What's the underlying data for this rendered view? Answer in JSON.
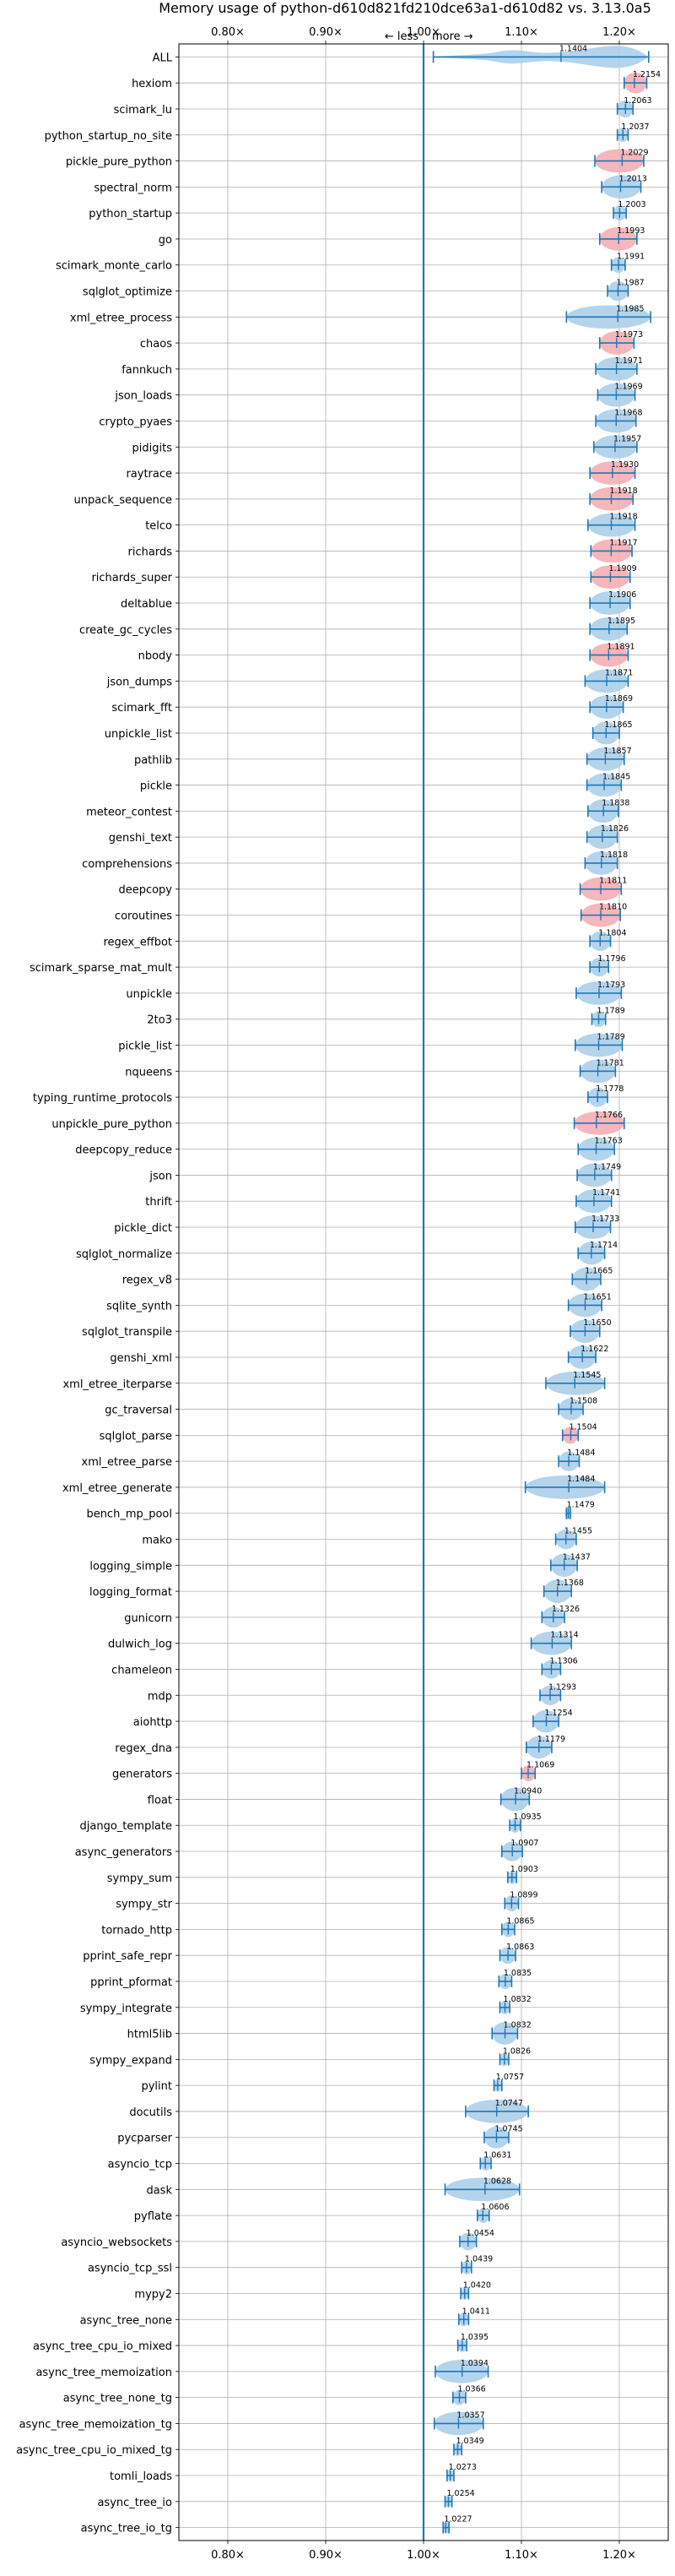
{
  "chart_data": {
    "type": "violin",
    "title": "Memory usage of python-d610d821fd210dce63a1-d610d82 vs. 3.13.0a5",
    "annotation_less": "← less",
    "annotation_more": "more →",
    "xlim": [
      0.75,
      1.25
    ],
    "xticks": [
      0.8,
      0.9,
      1.0,
      1.1,
      1.2
    ],
    "xtick_labels": [
      "0.80×",
      "0.90×",
      "1.00×",
      "1.10×",
      "1.20×"
    ],
    "reference_line": 1.0,
    "grid": true,
    "colors": {
      "violin": "#a7cce9",
      "violin_highlight": "#f3a9b0",
      "whisker": "#1f77b4",
      "reference": "#1f77b4",
      "grid": "#b0b0b0"
    },
    "benchmarks": [
      {
        "name": "ALL",
        "mean": 1.1404,
        "label": "1.1404",
        "lo": 1.01,
        "hi": 1.23,
        "highlight": false
      },
      {
        "name": "hexiom",
        "mean": 1.2154,
        "label": "1.2154",
        "lo": 1.205,
        "hi": 1.228,
        "highlight": true
      },
      {
        "name": "scimark_lu",
        "mean": 1.2063,
        "label": "1.2063",
        "lo": 1.198,
        "hi": 1.214,
        "highlight": false
      },
      {
        "name": "python_startup_no_site",
        "mean": 1.2037,
        "label": "1.2037",
        "lo": 1.198,
        "hi": 1.209,
        "highlight": false
      },
      {
        "name": "pickle_pure_python",
        "mean": 1.2029,
        "label": "1.2029",
        "lo": 1.175,
        "hi": 1.225,
        "highlight": true
      },
      {
        "name": "spectral_norm",
        "mean": 1.2013,
        "label": "1.2013",
        "lo": 1.182,
        "hi": 1.222,
        "highlight": false
      },
      {
        "name": "python_startup",
        "mean": 1.2003,
        "label": "1.2003",
        "lo": 1.194,
        "hi": 1.207,
        "highlight": false
      },
      {
        "name": "go",
        "mean": 1.1993,
        "label": "1.1993",
        "lo": 1.18,
        "hi": 1.218,
        "highlight": true
      },
      {
        "name": "scimark_monte_carlo",
        "mean": 1.1991,
        "label": "1.1991",
        "lo": 1.192,
        "hi": 1.206,
        "highlight": false
      },
      {
        "name": "sqlglot_optimize",
        "mean": 1.1987,
        "label": "1.1987",
        "lo": 1.188,
        "hi": 1.209,
        "highlight": false
      },
      {
        "name": "xml_etree_process",
        "mean": 1.1985,
        "label": "1.1985",
        "lo": 1.146,
        "hi": 1.232,
        "highlight": false
      },
      {
        "name": "chaos",
        "mean": 1.1973,
        "label": "1.1973",
        "lo": 1.18,
        "hi": 1.215,
        "highlight": true
      },
      {
        "name": "fannkuch",
        "mean": 1.1971,
        "label": "1.1971",
        "lo": 1.176,
        "hi": 1.218,
        "highlight": false
      },
      {
        "name": "json_loads",
        "mean": 1.1969,
        "label": "1.1969",
        "lo": 1.178,
        "hi": 1.216,
        "highlight": false
      },
      {
        "name": "crypto_pyaes",
        "mean": 1.1968,
        "label": "1.1968",
        "lo": 1.176,
        "hi": 1.217,
        "highlight": false
      },
      {
        "name": "pidigits",
        "mean": 1.1957,
        "label": "1.1957",
        "lo": 1.174,
        "hi": 1.218,
        "highlight": false
      },
      {
        "name": "raytrace",
        "mean": 1.193,
        "label": "1.1930",
        "lo": 1.17,
        "hi": 1.216,
        "highlight": true
      },
      {
        "name": "unpack_sequence",
        "mean": 1.1918,
        "label": "1.1918",
        "lo": 1.17,
        "hi": 1.214,
        "highlight": true
      },
      {
        "name": "telco",
        "mean": 1.1918,
        "label": "1.1918",
        "lo": 1.168,
        "hi": 1.216,
        "highlight": false
      },
      {
        "name": "richards",
        "mean": 1.1917,
        "label": "1.1917",
        "lo": 1.171,
        "hi": 1.213,
        "highlight": true
      },
      {
        "name": "richards_super",
        "mean": 1.1909,
        "label": "1.1909",
        "lo": 1.171,
        "hi": 1.211,
        "highlight": true
      },
      {
        "name": "deltablue",
        "mean": 1.1906,
        "label": "1.1906",
        "lo": 1.17,
        "hi": 1.211,
        "highlight": false
      },
      {
        "name": "create_gc_cycles",
        "mean": 1.1895,
        "label": "1.1895",
        "lo": 1.17,
        "hi": 1.208,
        "highlight": false
      },
      {
        "name": "nbody",
        "mean": 1.1891,
        "label": "1.1891",
        "lo": 1.17,
        "hi": 1.209,
        "highlight": true
      },
      {
        "name": "json_dumps",
        "mean": 1.1871,
        "label": "1.1871",
        "lo": 1.165,
        "hi": 1.209,
        "highlight": false
      },
      {
        "name": "scimark_fft",
        "mean": 1.1869,
        "label": "1.1869",
        "lo": 1.17,
        "hi": 1.204,
        "highlight": false
      },
      {
        "name": "unpickle_list",
        "mean": 1.1865,
        "label": "1.1865",
        "lo": 1.173,
        "hi": 1.2,
        "highlight": false
      },
      {
        "name": "pathlib",
        "mean": 1.1857,
        "label": "1.1857",
        "lo": 1.167,
        "hi": 1.205,
        "highlight": false
      },
      {
        "name": "pickle",
        "mean": 1.1845,
        "label": "1.1845",
        "lo": 1.167,
        "hi": 1.202,
        "highlight": false
      },
      {
        "name": "meteor_contest",
        "mean": 1.1838,
        "label": "1.1838",
        "lo": 1.168,
        "hi": 1.199,
        "highlight": false
      },
      {
        "name": "genshi_text",
        "mean": 1.1826,
        "label": "1.1826",
        "lo": 1.167,
        "hi": 1.198,
        "highlight": false
      },
      {
        "name": "comprehensions",
        "mean": 1.1818,
        "label": "1.1818",
        "lo": 1.165,
        "hi": 1.198,
        "highlight": false
      },
      {
        "name": "deepcopy",
        "mean": 1.1811,
        "label": "1.1811",
        "lo": 1.16,
        "hi": 1.202,
        "highlight": true
      },
      {
        "name": "coroutines",
        "mean": 1.181,
        "label": "1.1810",
        "lo": 1.161,
        "hi": 1.201,
        "highlight": true
      },
      {
        "name": "regex_effbot",
        "mean": 1.1804,
        "label": "1.1804",
        "lo": 1.17,
        "hi": 1.191,
        "highlight": false
      },
      {
        "name": "scimark_sparse_mat_mult",
        "mean": 1.1796,
        "label": "1.1796",
        "lo": 1.17,
        "hi": 1.189,
        "highlight": false
      },
      {
        "name": "unpickle",
        "mean": 1.1793,
        "label": "1.1793",
        "lo": 1.156,
        "hi": 1.202,
        "highlight": false
      },
      {
        "name": "2to3",
        "mean": 1.1789,
        "label": "1.1789",
        "lo": 1.172,
        "hi": 1.186,
        "highlight": false
      },
      {
        "name": "pickle_list",
        "mean": 1.1789,
        "label": "1.1789",
        "lo": 1.155,
        "hi": 1.203,
        "highlight": false
      },
      {
        "name": "nqueens",
        "mean": 1.1781,
        "label": "1.1781",
        "lo": 1.16,
        "hi": 1.196,
        "highlight": false
      },
      {
        "name": "typing_runtime_protocols",
        "mean": 1.1778,
        "label": "1.1778",
        "lo": 1.168,
        "hi": 1.188,
        "highlight": false
      },
      {
        "name": "unpickle_pure_python",
        "mean": 1.1766,
        "label": "1.1766",
        "lo": 1.154,
        "hi": 1.205,
        "highlight": true
      },
      {
        "name": "deepcopy_reduce",
        "mean": 1.1763,
        "label": "1.1763",
        "lo": 1.158,
        "hi": 1.195,
        "highlight": false
      },
      {
        "name": "json",
        "mean": 1.1749,
        "label": "1.1749",
        "lo": 1.157,
        "hi": 1.192,
        "highlight": false
      },
      {
        "name": "thrift",
        "mean": 1.1741,
        "label": "1.1741",
        "lo": 1.156,
        "hi": 1.192,
        "highlight": false
      },
      {
        "name": "pickle_dict",
        "mean": 1.1733,
        "label": "1.1733",
        "lo": 1.155,
        "hi": 1.191,
        "highlight": false
      },
      {
        "name": "sqlglot_normalize",
        "mean": 1.1714,
        "label": "1.1714",
        "lo": 1.158,
        "hi": 1.185,
        "highlight": false
      },
      {
        "name": "regex_v8",
        "mean": 1.1665,
        "label": "1.1665",
        "lo": 1.152,
        "hi": 1.181,
        "highlight": false
      },
      {
        "name": "sqlite_synth",
        "mean": 1.1651,
        "label": "1.1651",
        "lo": 1.148,
        "hi": 1.182,
        "highlight": false
      },
      {
        "name": "sqlglot_transpile",
        "mean": 1.165,
        "label": "1.1650",
        "lo": 1.15,
        "hi": 1.18,
        "highlight": false
      },
      {
        "name": "genshi_xml",
        "mean": 1.1622,
        "label": "1.1622",
        "lo": 1.148,
        "hi": 1.176,
        "highlight": false
      },
      {
        "name": "xml_etree_iterparse",
        "mean": 1.1545,
        "label": "1.1545",
        "lo": 1.125,
        "hi": 1.185,
        "highlight": false
      },
      {
        "name": "gc_traversal",
        "mean": 1.1508,
        "label": "1.1508",
        "lo": 1.138,
        "hi": 1.163,
        "highlight": false
      },
      {
        "name": "sqlglot_parse",
        "mean": 1.1504,
        "label": "1.1504",
        "lo": 1.142,
        "hi": 1.158,
        "highlight": true
      },
      {
        "name": "xml_etree_parse",
        "mean": 1.1484,
        "label": "1.1484",
        "lo": 1.138,
        "hi": 1.159,
        "highlight": false
      },
      {
        "name": "xml_etree_generate",
        "mean": 1.1484,
        "label": "1.1484",
        "lo": 1.104,
        "hi": 1.185,
        "highlight": false
      },
      {
        "name": "bench_mp_pool",
        "mean": 1.1479,
        "label": "1.1479",
        "lo": 1.146,
        "hi": 1.15,
        "highlight": false
      },
      {
        "name": "mako",
        "mean": 1.1455,
        "label": "1.1455",
        "lo": 1.135,
        "hi": 1.156,
        "highlight": false
      },
      {
        "name": "logging_simple",
        "mean": 1.1437,
        "label": "1.1437",
        "lo": 1.13,
        "hi": 1.157,
        "highlight": false
      },
      {
        "name": "logging_format",
        "mean": 1.1368,
        "label": "1.1368",
        "lo": 1.123,
        "hi": 1.151,
        "highlight": false
      },
      {
        "name": "gunicorn",
        "mean": 1.1326,
        "label": "1.1326",
        "lo": 1.121,
        "hi": 1.144,
        "highlight": false
      },
      {
        "name": "dulwich_log",
        "mean": 1.1314,
        "label": "1.1314",
        "lo": 1.11,
        "hi": 1.151,
        "highlight": false
      },
      {
        "name": "chameleon",
        "mean": 1.1306,
        "label": "1.1306",
        "lo": 1.121,
        "hi": 1.14,
        "highlight": false
      },
      {
        "name": "mdp",
        "mean": 1.1293,
        "label": "1.1293",
        "lo": 1.119,
        "hi": 1.14,
        "highlight": false
      },
      {
        "name": "aiohttp",
        "mean": 1.1254,
        "label": "1.1254",
        "lo": 1.112,
        "hi": 1.138,
        "highlight": false
      },
      {
        "name": "regex_dna",
        "mean": 1.1179,
        "label": "1.1179",
        "lo": 1.105,
        "hi": 1.131,
        "highlight": false
      },
      {
        "name": "generators",
        "mean": 1.1069,
        "label": "1.1069",
        "lo": 1.1,
        "hi": 1.114,
        "highlight": true
      },
      {
        "name": "float",
        "mean": 1.094,
        "label": "1.0940",
        "lo": 1.079,
        "hi": 1.108,
        "highlight": false
      },
      {
        "name": "django_template",
        "mean": 1.0935,
        "label": "1.0935",
        "lo": 1.088,
        "hi": 1.099,
        "highlight": false
      },
      {
        "name": "async_generators",
        "mean": 1.0907,
        "label": "1.0907",
        "lo": 1.08,
        "hi": 1.101,
        "highlight": false
      },
      {
        "name": "sympy_sum",
        "mean": 1.0903,
        "label": "1.0903",
        "lo": 1.086,
        "hi": 1.095,
        "highlight": false
      },
      {
        "name": "sympy_str",
        "mean": 1.0899,
        "label": "1.0899",
        "lo": 1.083,
        "hi": 1.097,
        "highlight": false
      },
      {
        "name": "tornado_http",
        "mean": 1.0865,
        "label": "1.0865",
        "lo": 1.08,
        "hi": 1.093,
        "highlight": false
      },
      {
        "name": "pprint_safe_repr",
        "mean": 1.0863,
        "label": "1.0863",
        "lo": 1.078,
        "hi": 1.094,
        "highlight": false
      },
      {
        "name": "pprint_pformat",
        "mean": 1.0835,
        "label": "1.0835",
        "lo": 1.077,
        "hi": 1.09,
        "highlight": false
      },
      {
        "name": "sympy_integrate",
        "mean": 1.0832,
        "label": "1.0832",
        "lo": 1.078,
        "hi": 1.088,
        "highlight": false
      },
      {
        "name": "html5lib",
        "mean": 1.0832,
        "label": "1.0832",
        "lo": 1.07,
        "hi": 1.096,
        "highlight": false
      },
      {
        "name": "sympy_expand",
        "mean": 1.0826,
        "label": "1.0826",
        "lo": 1.078,
        "hi": 1.087,
        "highlight": false
      },
      {
        "name": "pylint",
        "mean": 1.0757,
        "label": "1.0757",
        "lo": 1.072,
        "hi": 1.08,
        "highlight": false
      },
      {
        "name": "docutils",
        "mean": 1.0747,
        "label": "1.0747",
        "lo": 1.043,
        "hi": 1.107,
        "highlight": false
      },
      {
        "name": "pycparser",
        "mean": 1.0745,
        "label": "1.0745",
        "lo": 1.062,
        "hi": 1.087,
        "highlight": false
      },
      {
        "name": "asyncio_tcp",
        "mean": 1.0631,
        "label": "1.0631",
        "lo": 1.058,
        "hi": 1.069,
        "highlight": false
      },
      {
        "name": "dask",
        "mean": 1.0628,
        "label": "1.0628",
        "lo": 1.022,
        "hi": 1.098,
        "highlight": false
      },
      {
        "name": "pyflate",
        "mean": 1.0606,
        "label": "1.0606",
        "lo": 1.055,
        "hi": 1.067,
        "highlight": false
      },
      {
        "name": "asyncio_websockets",
        "mean": 1.0454,
        "label": "1.0454",
        "lo": 1.037,
        "hi": 1.054,
        "highlight": false
      },
      {
        "name": "asyncio_tcp_ssl",
        "mean": 1.0439,
        "label": "1.0439",
        "lo": 1.039,
        "hi": 1.049,
        "highlight": false
      },
      {
        "name": "mypy2",
        "mean": 1.042,
        "label": "1.0420",
        "lo": 1.038,
        "hi": 1.046,
        "highlight": false
      },
      {
        "name": "async_tree_none",
        "mean": 1.0411,
        "label": "1.0411",
        "lo": 1.036,
        "hi": 1.046,
        "highlight": false
      },
      {
        "name": "async_tree_cpu_io_mixed",
        "mean": 1.0395,
        "label": "1.0395",
        "lo": 1.035,
        "hi": 1.044,
        "highlight": false
      },
      {
        "name": "async_tree_memoization",
        "mean": 1.0394,
        "label": "1.0394",
        "lo": 1.012,
        "hi": 1.066,
        "highlight": false
      },
      {
        "name": "async_tree_none_tg",
        "mean": 1.0366,
        "label": "1.0366",
        "lo": 1.03,
        "hi": 1.043,
        "highlight": false
      },
      {
        "name": "async_tree_memoization_tg",
        "mean": 1.0357,
        "label": "1.0357",
        "lo": 1.011,
        "hi": 1.061,
        "highlight": false
      },
      {
        "name": "async_tree_cpu_io_mixed_tg",
        "mean": 1.0349,
        "label": "1.0349",
        "lo": 1.031,
        "hi": 1.039,
        "highlight": false
      },
      {
        "name": "tomli_loads",
        "mean": 1.0273,
        "label": "1.0273",
        "lo": 1.024,
        "hi": 1.031,
        "highlight": false
      },
      {
        "name": "async_tree_io",
        "mean": 1.0254,
        "label": "1.0254",
        "lo": 1.022,
        "hi": 1.029,
        "highlight": false
      },
      {
        "name": "async_tree_io_tg",
        "mean": 1.0227,
        "label": "1.0227",
        "lo": 1.02,
        "hi": 1.026,
        "highlight": false
      }
    ]
  }
}
